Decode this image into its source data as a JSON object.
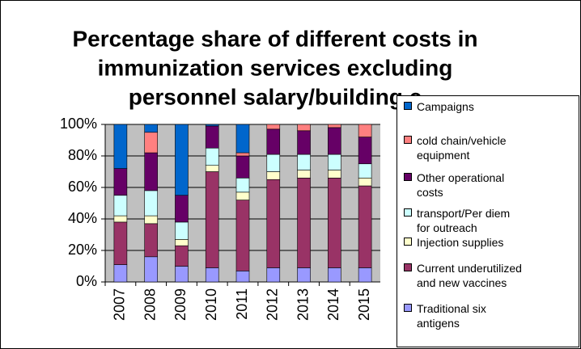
{
  "chart_data": {
    "type": "stacked_bar",
    "title": [
      "Percentage share of different costs in",
      "immunization services excluding",
      "personnel salary/building c"
    ],
    "categories": [
      "2007",
      "2008",
      "2009",
      "2010",
      "2011",
      "2012",
      "2013",
      "2014",
      "2015"
    ],
    "series": [
      {
        "name": "Traditional six antigens",
        "color": "#9999ff",
        "values": [
          11,
          16,
          10,
          9,
          7,
          9,
          9,
          9,
          9
        ]
      },
      {
        "name": "Current underutilized and new vaccines",
        "color": "#993366",
        "values": [
          27,
          21,
          13,
          61,
          45,
          56,
          57,
          57,
          52
        ]
      },
      {
        "name": "Injection supplies",
        "color": "#ffffcc",
        "values": [
          4,
          5,
          4,
          4,
          5,
          5,
          5,
          5,
          5
        ]
      },
      {
        "name": "transport/Per diem for outreach",
        "color": "#ccffff",
        "values": [
          13,
          16,
          11,
          11,
          9,
          11,
          10,
          10,
          9
        ]
      },
      {
        "name": "Other operational costs",
        "color": "#660066",
        "values": [
          17,
          24,
          17,
          14,
          14,
          16,
          15,
          17,
          17
        ]
      },
      {
        "name": "cold chain/vehicle equipment",
        "color": "#ff8080",
        "values": [
          0,
          13,
          0,
          0,
          2,
          3,
          4,
          2,
          8
        ]
      },
      {
        "name": "Campaigns",
        "color": "#0066cc",
        "values": [
          28,
          5,
          45,
          1,
          18,
          0,
          0,
          0,
          0
        ]
      }
    ],
    "ylim": [
      0,
      100
    ],
    "yticks": [
      {
        "value": 0,
        "label": "0%"
      },
      {
        "value": 20,
        "label": "20%"
      },
      {
        "value": 40,
        "label": "40%"
      },
      {
        "value": 60,
        "label": "60%"
      },
      {
        "value": 80,
        "label": "80%"
      },
      {
        "value": 100,
        "label": "100%"
      }
    ],
    "grid": true,
    "legend": "right"
  }
}
